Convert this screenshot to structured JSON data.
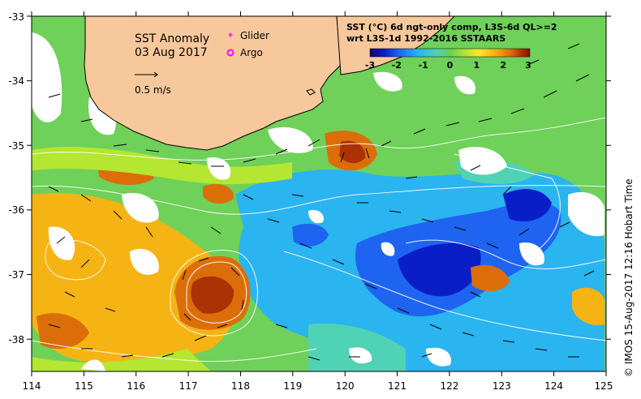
{
  "title": "SST Anomaly",
  "date": "03 Aug 2017",
  "legend": {
    "glider_label": "Glider",
    "argo_label": "Argo",
    "glider_color": "#ff33ff",
    "argo_color": "#ff00ff"
  },
  "scale_label": "0.5 m/s",
  "colorbar": {
    "title_line1": "SST (°C) 6d ngt-only comp, L3S-6d QL>=2",
    "title_line2": "wrt L3S-1d 1992-2016 SSTAARS",
    "ticks": [
      "-3",
      "-2",
      "-1",
      "0",
      "1",
      "2",
      "3"
    ],
    "colors": [
      "#140078",
      "#0a1ec8",
      "#1e64f0",
      "#2ab4f0",
      "#50d2b4",
      "#64d250",
      "#b4e632",
      "#fae628",
      "#f5b414",
      "#dc6e0a",
      "#aa3205",
      "#7d1405"
    ]
  },
  "axes": {
    "lon_ticks": [
      "114",
      "115",
      "116",
      "117",
      "118",
      "119",
      "120",
      "121",
      "122",
      "123",
      "124",
      "125"
    ],
    "lat_ticks": [
      "-33",
      "-34",
      "-35",
      "-36",
      "-37",
      "-38"
    ]
  },
  "credit": "© IMOS 15-Aug-2017 12:16 Hobart Time",
  "colors": {
    "land": "#f7c89c",
    "coast": "#000000",
    "contour": "#ffffff"
  }
}
